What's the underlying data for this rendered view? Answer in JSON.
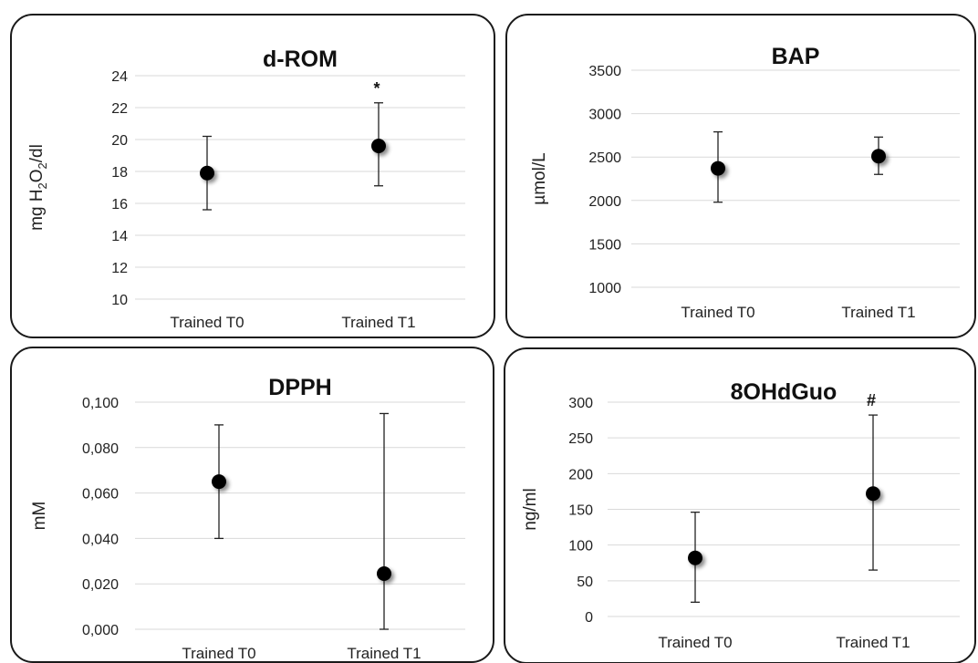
{
  "chart_data": [
    {
      "type": "scatter",
      "title": "d-ROM",
      "ylabel": "mg H2O2/dl",
      "ylabel_parts": {
        "prefix": "mg H",
        "sub1": "2",
        "mid": "O",
        "sub2": "2",
        "suffix": "/dl"
      },
      "categories": [
        "Trained T0",
        "Trained T1"
      ],
      "values": [
        17.9,
        19.6
      ],
      "error_low": [
        15.6,
        17.1
      ],
      "error_high": [
        20.2,
        22.3
      ],
      "ylim": [
        10,
        24
      ],
      "yticks": [
        "10",
        "12",
        "14",
        "16",
        "18",
        "20",
        "22",
        "24"
      ],
      "annotations": [
        {
          "category": "Trained T1",
          "text": "*"
        }
      ]
    },
    {
      "type": "scatter",
      "title": "BAP",
      "ylabel": "µmol/L",
      "categories": [
        "Trained T0",
        "Trained T1"
      ],
      "values": [
        2370,
        2510
      ],
      "error_low": [
        1980,
        2300
      ],
      "error_high": [
        2790,
        2730
      ],
      "ylim": [
        1000,
        3500
      ],
      "yticks": [
        "1000",
        "1500",
        "2000",
        "2500",
        "3000",
        "3500"
      ],
      "annotations": []
    },
    {
      "type": "scatter",
      "title": "DPPH",
      "ylabel": "mM",
      "categories": [
        "Trained T0",
        "Trained T1"
      ],
      "values": [
        0.065,
        0.0245
      ],
      "error_low": [
        0.04,
        0.0
      ],
      "error_high": [
        0.09,
        0.095
      ],
      "ylim": [
        0,
        0.1
      ],
      "yticks": [
        "0,000",
        "0,020",
        "0,040",
        "0,060",
        "0,080",
        "0,100"
      ],
      "annotations": []
    },
    {
      "type": "scatter",
      "title": "8OHdGuo",
      "ylabel": "ng/ml",
      "categories": [
        "Trained T0",
        "Trained T1"
      ],
      "values": [
        82,
        172
      ],
      "error_low": [
        20,
        65
      ],
      "error_high": [
        146,
        282
      ],
      "ylim": [
        0,
        300
      ],
      "yticks": [
        "0",
        "50",
        "100",
        "150",
        "200",
        "250",
        "300"
      ],
      "annotations": [
        {
          "category": "Trained T1",
          "text": "#"
        }
      ]
    }
  ]
}
